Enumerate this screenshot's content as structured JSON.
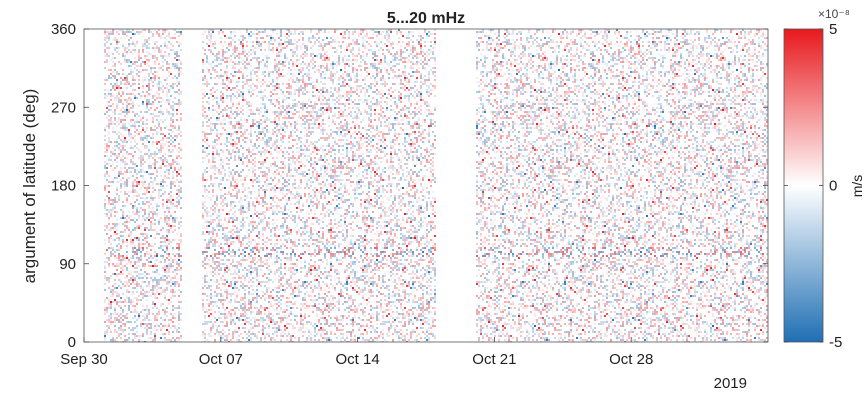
{
  "chart_data": {
    "type": "heatmap",
    "title": "5...20 mHz",
    "xlabel": "",
    "ylabel": "argument of latitude (deg)",
    "x_ticks": [
      "Sep 30",
      "Oct 07",
      "Oct 14",
      "Oct 21",
      "Oct 28"
    ],
    "x_year_label": "2019",
    "xlim": [
      "2019-09-30",
      "2019-11-04"
    ],
    "ylim": [
      0,
      360
    ],
    "y_ticks": [
      "0",
      "90",
      "180",
      "270",
      "360"
    ],
    "colorbar": {
      "label": "m/s",
      "ticks": [
        "5",
        "0",
        "-5"
      ],
      "exponent": "×10⁻⁸",
      "range": [
        -5e-08,
        5e-08
      ],
      "colormap": "blue-white-red",
      "high_color": "#e8191d",
      "low_color": "#1f6fb4"
    },
    "data_gaps": [
      [
        "2019-09-30",
        "2019-10-01"
      ],
      [
        "2019-10-05",
        "2019-10-06"
      ],
      [
        "2019-10-18",
        "2019-10-20"
      ]
    ],
    "grid": false
  }
}
